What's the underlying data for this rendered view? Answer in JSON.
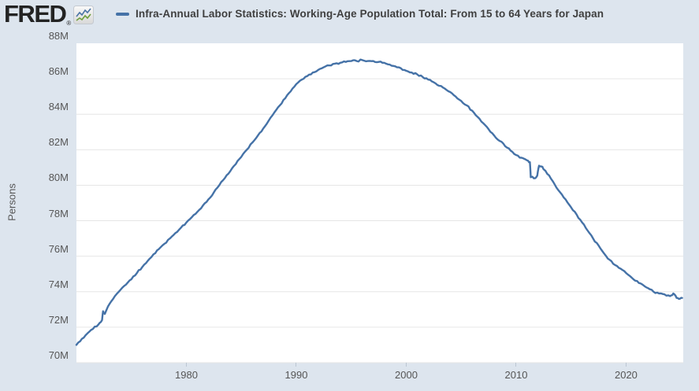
{
  "header": {
    "logo_text": "FRED",
    "registered_mark": "®",
    "legend_label": "Infra-Annual Labor Statistics: Working-Age Population Total: From 15 to 64 Years for Japan"
  },
  "colors": {
    "background": "#dde5ee",
    "plot_background": "#ffffff",
    "gridline": "#e6e6e6",
    "series_line": "#4572a7",
    "axis_text": "#565656",
    "title_text": "#3f3f3f",
    "icon_blue_line": "#4a74a5",
    "icon_green_line": "#6f9f3e"
  },
  "chart_data": {
    "type": "line",
    "title": "Infra-Annual Labor Statistics: Working-Age Population Total: From 15 to 64 Years for Japan",
    "ylabel": "Persons",
    "xlabel": "",
    "unit": "millions of persons",
    "grid": true,
    "legend_position": "top",
    "ylim_millions": [
      70,
      88
    ],
    "xlim_years": [
      1970,
      2025.2
    ],
    "y_ticks": [
      {
        "value": 70,
        "label": "70M"
      },
      {
        "value": 72,
        "label": "72M"
      },
      {
        "value": 74,
        "label": "74M"
      },
      {
        "value": 76,
        "label": "76M"
      },
      {
        "value": 78,
        "label": "78M"
      },
      {
        "value": 80,
        "label": "80M"
      },
      {
        "value": 82,
        "label": "82M"
      },
      {
        "value": 84,
        "label": "84M"
      },
      {
        "value": 86,
        "label": "86M"
      },
      {
        "value": 88,
        "label": "88M"
      }
    ],
    "x_ticks": [
      {
        "value": 1980,
        "label": "1980"
      },
      {
        "value": 1990,
        "label": "1990"
      },
      {
        "value": 2000,
        "label": "2000"
      },
      {
        "value": 2010,
        "label": "2010"
      },
      {
        "value": 2020,
        "label": "2020"
      }
    ],
    "series": [
      {
        "name": "Infra-Annual Labor Statistics: Working-Age Population Total: From 15 to 64 Years for Japan",
        "color": "#4572a7",
        "points_year_millions": [
          [
            1970,
            71.0
          ],
          [
            1970.5,
            71.35
          ],
          [
            1971,
            71.65
          ],
          [
            1971.5,
            71.9
          ],
          [
            1972,
            72.15
          ],
          [
            1972.33,
            72.4
          ],
          [
            1972.42,
            72.9
          ],
          [
            1972.58,
            72.75
          ],
          [
            1973,
            73.3
          ],
          [
            1973.5,
            73.75
          ],
          [
            1974,
            74.1
          ],
          [
            1974.5,
            74.4
          ],
          [
            1975,
            74.7
          ],
          [
            1975.5,
            75.05
          ],
          [
            1976,
            75.4
          ],
          [
            1976.5,
            75.75
          ],
          [
            1977,
            76.1
          ],
          [
            1977.5,
            76.4
          ],
          [
            1978,
            76.7
          ],
          [
            1978.5,
            77.0
          ],
          [
            1979,
            77.3
          ],
          [
            1979.5,
            77.6
          ],
          [
            1980,
            77.9
          ],
          [
            1980.5,
            78.2
          ],
          [
            1981,
            78.5
          ],
          [
            1981.5,
            78.85
          ],
          [
            1982,
            79.2
          ],
          [
            1982.5,
            79.6
          ],
          [
            1983,
            80.0
          ],
          [
            1983.5,
            80.4
          ],
          [
            1984,
            80.8
          ],
          [
            1984.5,
            81.2
          ],
          [
            1985,
            81.6
          ],
          [
            1985.5,
            82.0
          ],
          [
            1986,
            82.4
          ],
          [
            1986.5,
            82.8
          ],
          [
            1987,
            83.2
          ],
          [
            1987.5,
            83.65
          ],
          [
            1988,
            84.1
          ],
          [
            1988.5,
            84.5
          ],
          [
            1989,
            84.9
          ],
          [
            1989.5,
            85.3
          ],
          [
            1990,
            85.7
          ],
          [
            1990.5,
            85.95
          ],
          [
            1991,
            86.15
          ],
          [
            1991.5,
            86.35
          ],
          [
            1992,
            86.5
          ],
          [
            1992.5,
            86.65
          ],
          [
            1993,
            86.75
          ],
          [
            1993.5,
            86.85
          ],
          [
            1994,
            86.9
          ],
          [
            1994.5,
            86.95
          ],
          [
            1995,
            87.0
          ],
          [
            1995.5,
            87.0
          ],
          [
            1996,
            87.05
          ],
          [
            1996.5,
            87.0
          ],
          [
            1997,
            87.0
          ],
          [
            1997.5,
            86.95
          ],
          [
            1998,
            86.9
          ],
          [
            1998.5,
            86.8
          ],
          [
            1999,
            86.7
          ],
          [
            1999.5,
            86.6
          ],
          [
            2000,
            86.45
          ],
          [
            2000.5,
            86.35
          ],
          [
            2001,
            86.25
          ],
          [
            2001.5,
            86.1
          ],
          [
            2002,
            85.95
          ],
          [
            2002.5,
            85.8
          ],
          [
            2003,
            85.6
          ],
          [
            2003.5,
            85.45
          ],
          [
            2004,
            85.25
          ],
          [
            2004.5,
            85.0
          ],
          [
            2005,
            84.75
          ],
          [
            2005.5,
            84.5
          ],
          [
            2006,
            84.2
          ],
          [
            2006.5,
            83.85
          ],
          [
            2007,
            83.5
          ],
          [
            2007.5,
            83.15
          ],
          [
            2008,
            82.8
          ],
          [
            2008.5,
            82.5
          ],
          [
            2009,
            82.2
          ],
          [
            2009.5,
            81.95
          ],
          [
            2010,
            81.7
          ],
          [
            2010.5,
            81.55
          ],
          [
            2011,
            81.4
          ],
          [
            2011.25,
            81.3
          ],
          [
            2011.33,
            80.45
          ],
          [
            2011.75,
            80.4
          ],
          [
            2011.92,
            80.55
          ],
          [
            2012.08,
            81.1
          ],
          [
            2012.33,
            81.05
          ],
          [
            2012.5,
            80.9
          ],
          [
            2013,
            80.55
          ],
          [
            2013.5,
            80.05
          ],
          [
            2014,
            79.6
          ],
          [
            2014.5,
            79.2
          ],
          [
            2015,
            78.75
          ],
          [
            2015.5,
            78.35
          ],
          [
            2016,
            77.9
          ],
          [
            2016.5,
            77.45
          ],
          [
            2017,
            77.0
          ],
          [
            2017.5,
            76.6
          ],
          [
            2018,
            76.15
          ],
          [
            2018.5,
            75.8
          ],
          [
            2019,
            75.5
          ],
          [
            2019.5,
            75.3
          ],
          [
            2020,
            75.05
          ],
          [
            2020.5,
            74.8
          ],
          [
            2021,
            74.6
          ],
          [
            2021.5,
            74.4
          ],
          [
            2022,
            74.2
          ],
          [
            2022.5,
            74.0
          ],
          [
            2023,
            73.9
          ],
          [
            2023.5,
            73.85
          ],
          [
            2024,
            73.75
          ],
          [
            2024.3,
            73.9
          ],
          [
            2024.6,
            73.65
          ],
          [
            2024.9,
            73.6
          ],
          [
            2025.1,
            73.65
          ]
        ]
      }
    ]
  }
}
